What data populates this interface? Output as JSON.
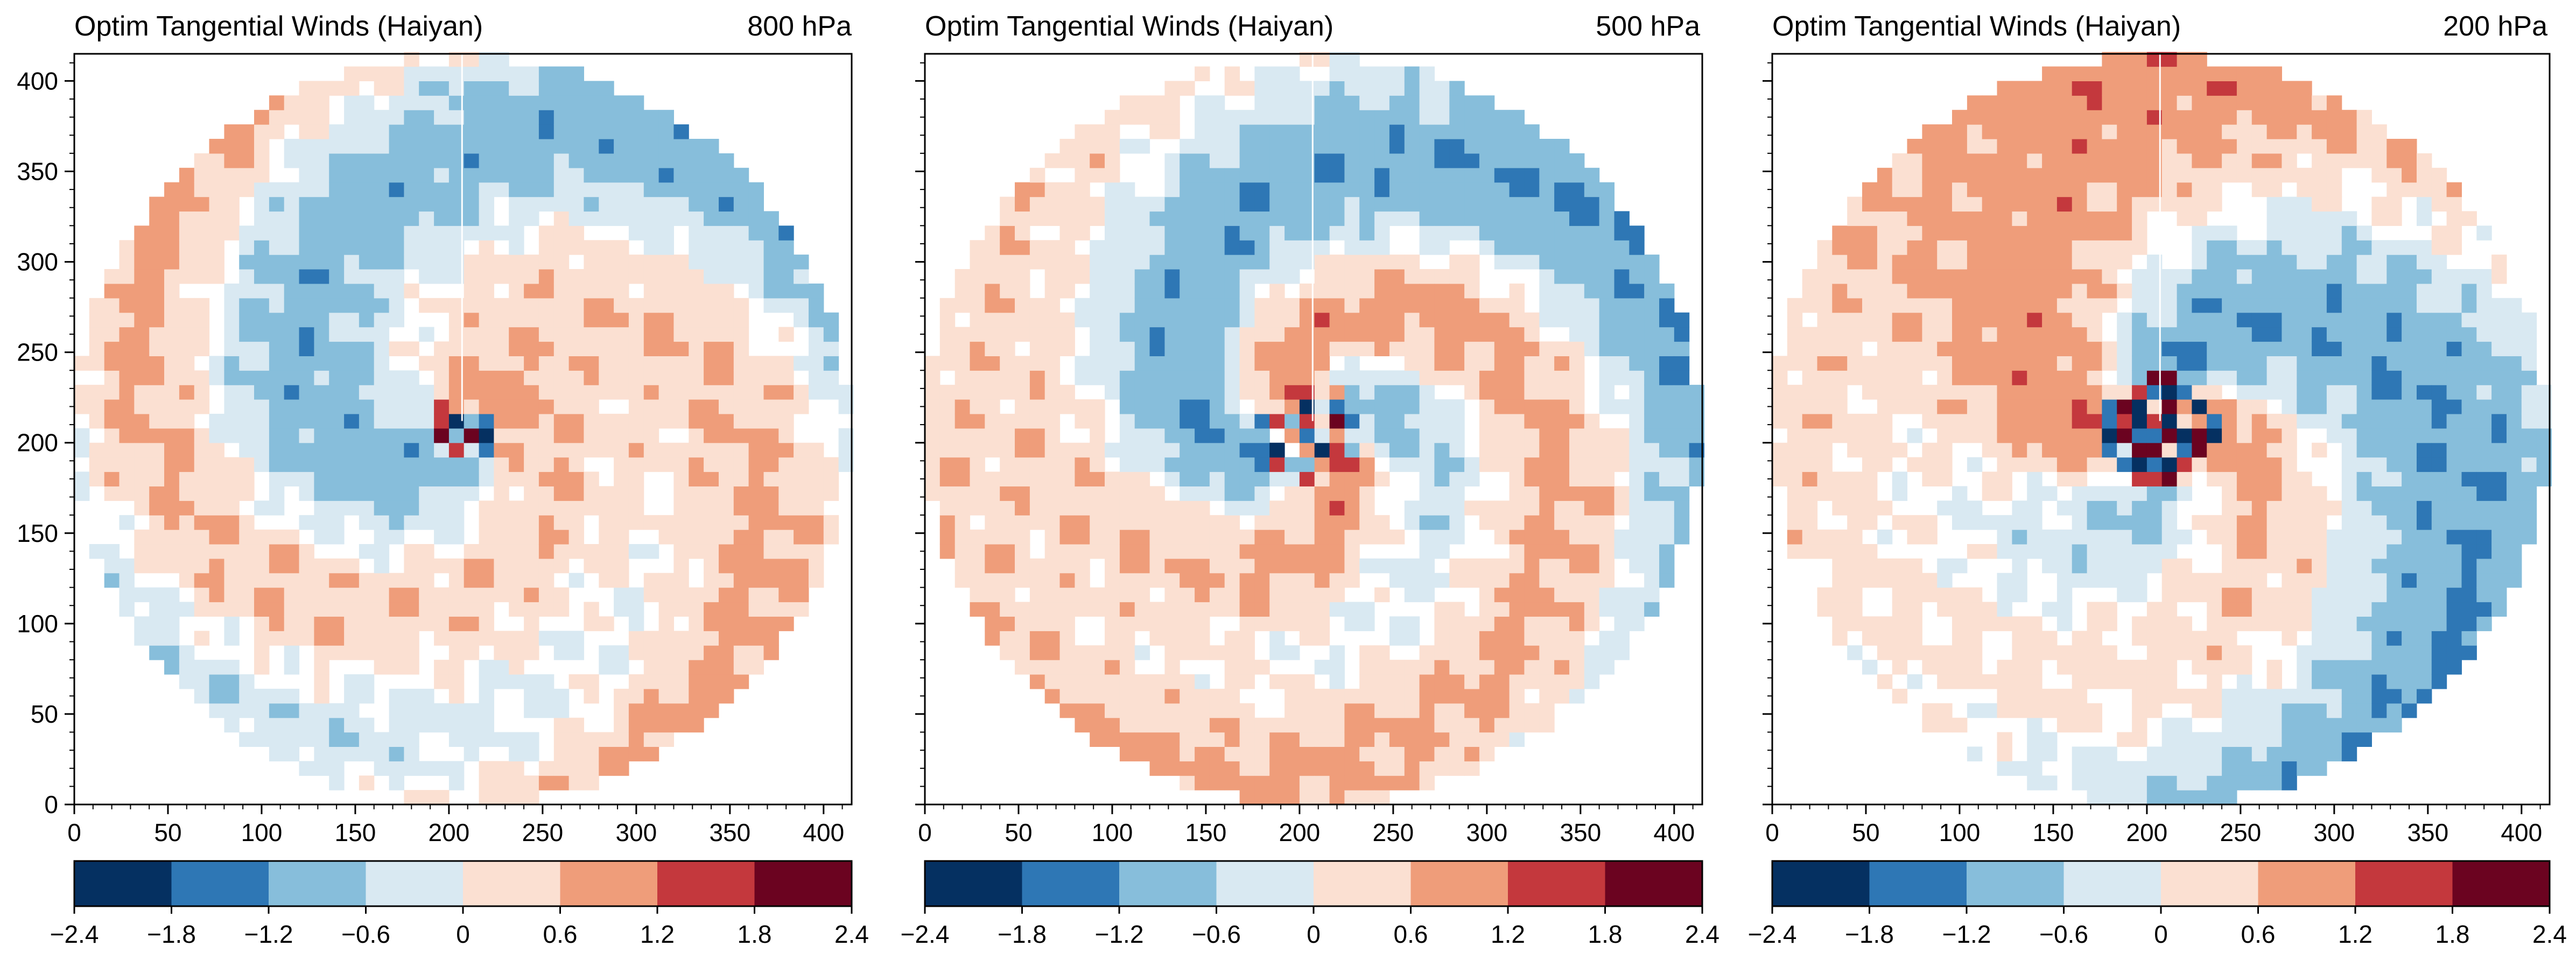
{
  "figure": {
    "panels": [
      {
        "title": "Optim Tangential Winds (Haiyan)",
        "level": "800 hPa"
      },
      {
        "title": "Optim Tangential Winds (Haiyan)",
        "level": "500 hPa"
      },
      {
        "title": "Optim Tangential Winds (Haiyan)",
        "level": "200 hPa"
      }
    ]
  },
  "chart_data": [
    {
      "type": "heatmap",
      "title": "Optim Tangential Winds (Haiyan)",
      "subtitle": "800 hPa",
      "xlim": [
        0,
        415
      ],
      "ylim": [
        0,
        415
      ],
      "xticks": [
        0,
        50,
        100,
        150,
        200,
        250,
        300,
        350,
        400
      ],
      "yticks": [
        0,
        50,
        100,
        150,
        200,
        250,
        300,
        350,
        400
      ],
      "domain": "circle",
      "center": [
        207,
        207
      ],
      "radius": 207,
      "colorbar": {
        "levels": [
          -2.4,
          -1.8,
          -1.2,
          -0.6,
          0,
          0.6,
          1.2,
          1.8,
          2.4
        ],
        "tick_labels": [
          "−2.4",
          "−1.8",
          "−1.2",
          "−0.6",
          "0",
          "0.6",
          "1.2",
          "1.8",
          "2.4"
        ],
        "colors": [
          "#053061",
          "#2e77b5",
          "#87bedb",
          "#d9e9f2",
          "#fbe0d2",
          "#ef9d7a",
          "#c4383d",
          "#6b0320"
        ]
      },
      "pattern": {
        "r0": 18,
        "twist": 0.018,
        "rot": 0.3,
        "inner": 1.0,
        "mode": 1,
        "amp": 1.9,
        "outer": 0.8,
        "outer_rot": 2.2,
        "outer_mode": 2
      }
    },
    {
      "type": "heatmap",
      "title": "Optim Tangential Winds (Haiyan)",
      "subtitle": "500 hPa",
      "xlim": [
        0,
        415
      ],
      "ylim": [
        0,
        415
      ],
      "xticks": [
        0,
        50,
        100,
        150,
        200,
        250,
        300,
        350,
        400
      ],
      "yticks": [
        0,
        50,
        100,
        150,
        200,
        250,
        300,
        350,
        400
      ],
      "domain": "circle",
      "center": [
        207,
        207
      ],
      "radius": 207,
      "colorbar": {
        "levels": [
          -2.4,
          -1.8,
          -1.2,
          -0.6,
          0,
          0.6,
          1.2,
          1.8,
          2.4
        ],
        "tick_labels": [
          "−2.4",
          "−1.8",
          "−1.2",
          "−0.6",
          "0",
          "0.6",
          "1.2",
          "1.8",
          "2.4"
        ],
        "colors": [
          "#053061",
          "#2e77b5",
          "#87bedb",
          "#d9e9f2",
          "#fbe0d2",
          "#ef9d7a",
          "#c4383d",
          "#6b0320"
        ]
      },
      "pattern": {
        "r0": 28,
        "twist": 0.02,
        "rot": 2.4,
        "inner": 1.1,
        "mode": 2,
        "amp": 2.0,
        "outer": 0.9,
        "outer_rot": 0.2,
        "outer_mode": 1
      }
    },
    {
      "type": "heatmap",
      "title": "Optim Tangential Winds (Haiyan)",
      "subtitle": "200 hPa",
      "xlim": [
        0,
        415
      ],
      "ylim": [
        0,
        415
      ],
      "xticks": [
        0,
        50,
        100,
        150,
        200,
        250,
        300,
        350,
        400
      ],
      "yticks": [
        0,
        50,
        100,
        150,
        200,
        250,
        300,
        350,
        400
      ],
      "domain": "circle",
      "center": [
        207,
        207
      ],
      "radius": 207,
      "colorbar": {
        "levels": [
          -2.4,
          -1.8,
          -1.2,
          -0.6,
          0,
          0.6,
          1.2,
          1.8,
          2.4
        ],
        "tick_labels": [
          "−2.4",
          "−1.8",
          "−1.2",
          "−0.6",
          "0",
          "0.6",
          "1.2",
          "1.8",
          "2.4"
        ],
        "colors": [
          "#053061",
          "#2e77b5",
          "#87bedb",
          "#d9e9f2",
          "#fbe0d2",
          "#ef9d7a",
          "#c4383d",
          "#6b0320"
        ]
      },
      "pattern": {
        "r0": 30,
        "twist": 0.012,
        "rot": 0.9,
        "inner": 1.1,
        "mode": 2,
        "amp": 2.0,
        "outer": 1.0,
        "outer_rot": 3.3,
        "outer_mode": 1
      }
    }
  ]
}
